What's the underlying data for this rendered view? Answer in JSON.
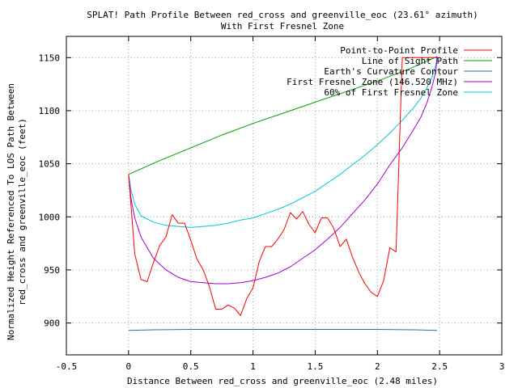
{
  "chart_data": {
    "type": "line",
    "title": "SPLAT! Path Profile Between red_cross and greenville_eoc (23.61° azimuth)",
    "subtitle": "With First Fresnel Zone",
    "xlabel": "Distance Between red_cross and greenville_eoc (2.48 miles)",
    "ylabel_line1": "Normalized Height Referenced To LOS Path Between",
    "ylabel_line2": "red_cross and greenville_eoc (feet)",
    "xlim": [
      -0.5,
      3
    ],
    "ylim": [
      870,
      1170
    ],
    "x_ticks": [
      -0.5,
      0,
      0.5,
      1,
      1.5,
      2,
      2.5,
      3
    ],
    "x_tick_labels": [
      "-0.5",
      "0",
      "0.5",
      "1",
      "1.5",
      "2",
      "2.5",
      "3"
    ],
    "y_ticks": [
      900,
      950,
      1000,
      1050,
      1100,
      1150
    ],
    "y_tick_labels": [
      "900",
      "950",
      "1000",
      "1050",
      "1100",
      "1150"
    ],
    "grid": true,
    "legend_position": "top-right",
    "series": [
      {
        "name": "Point-to-Point Profile",
        "color": "#ff0000",
        "x": [
          0,
          0.05,
          0.1,
          0.15,
          0.2,
          0.25,
          0.3,
          0.35,
          0.4,
          0.45,
          0.5,
          0.55,
          0.6,
          0.65,
          0.7,
          0.75,
          0.8,
          0.85,
          0.9,
          0.95,
          1.0,
          1.05,
          1.1,
          1.15,
          1.2,
          1.25,
          1.3,
          1.35,
          1.4,
          1.45,
          1.5,
          1.55,
          1.6,
          1.65,
          1.7,
          1.75,
          1.8,
          1.85,
          1.9,
          1.95,
          2.0,
          2.05,
          2.1,
          2.15,
          2.2,
          2.25,
          2.3,
          2.35,
          2.4,
          2.45,
          2.48
        ],
        "values": [
          1040,
          965,
          941,
          939,
          957,
          973,
          981,
          1002,
          994,
          994,
          978,
          960,
          950,
          934,
          913,
          913,
          917,
          914,
          907,
          923,
          933,
          958,
          972,
          972,
          979,
          988,
          1004,
          998,
          1005,
          993,
          985,
          999,
          999,
          989,
          972,
          979,
          962,
          948,
          937,
          929,
          925,
          940,
          971,
          967,
          1150,
          1150,
          1150,
          1150,
          1150,
          1150,
          1150
        ]
      },
      {
        "name": "Line of Sight Path",
        "color": "#00a000",
        "x": [
          0,
          0.25,
          0.5,
          0.75,
          1.0,
          1.25,
          1.5,
          1.75,
          2.0,
          2.25,
          2.48
        ],
        "values": [
          1040,
          1053,
          1065,
          1077,
          1088,
          1098,
          1108,
          1118,
          1128,
          1139,
          1151
        ]
      },
      {
        "name": "Earth's Curvature Contour",
        "color": "#1a6ec8",
        "x": [
          0,
          0.2,
          0.5,
          1.0,
          1.5,
          2.0,
          2.3,
          2.48
        ],
        "values": [
          893,
          893.6,
          894,
          894,
          894,
          894,
          893.6,
          893
        ]
      },
      {
        "name": "First Fresnel Zone (146.520 MHz)",
        "color": "#a000d0",
        "x": [
          0,
          0.02,
          0.05,
          0.1,
          0.2,
          0.3,
          0.4,
          0.5,
          0.6,
          0.7,
          0.8,
          0.9,
          1.0,
          1.1,
          1.2,
          1.3,
          1.4,
          1.5,
          1.6,
          1.7,
          1.8,
          1.9,
          2.0,
          2.1,
          2.2,
          2.3,
          2.35,
          2.4,
          2.44,
          2.47,
          2.48
        ],
        "values": [
          1040,
          1017,
          999,
          981,
          961,
          950,
          943,
          939,
          938,
          937,
          937,
          938,
          940,
          943,
          947,
          953,
          961,
          969,
          979,
          990,
          1003,
          1016,
          1031,
          1049,
          1065,
          1084,
          1094,
          1108,
          1123,
          1137,
          1151
        ]
      },
      {
        "name": "60% of First Fresnel Zone",
        "color": "#00c8d0",
        "x": [
          0,
          0.02,
          0.05,
          0.1,
          0.2,
          0.3,
          0.4,
          0.5,
          0.6,
          0.7,
          0.8,
          0.9,
          1.0,
          1.1,
          1.2,
          1.3,
          1.4,
          1.5,
          1.6,
          1.7,
          1.8,
          1.9,
          2.0,
          2.1,
          2.2,
          2.3,
          2.35,
          2.4,
          2.44,
          2.47,
          2.48
        ],
        "values": [
          1040,
          1025,
          1012,
          1001,
          995,
          992,
          991,
          990,
          991,
          992,
          994,
          997,
          999,
          1003,
          1007,
          1012,
          1018,
          1024,
          1032,
          1040,
          1049,
          1058,
          1068,
          1079,
          1091,
          1104,
          1112,
          1122,
          1132,
          1143,
          1151
        ]
      }
    ]
  }
}
